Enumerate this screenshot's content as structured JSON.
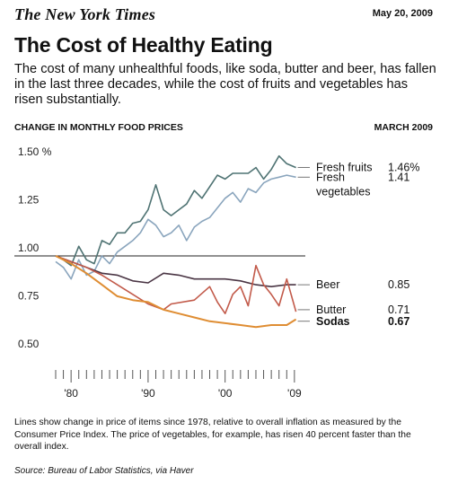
{
  "header": {
    "masthead": "The New York Times",
    "date": "May 20, 2009"
  },
  "headline": "The Cost of Healthy Eating",
  "subtitle": "The cost of many unhealthful foods, like soda, butter and beer, has fallen in the last three decades, while the cost of fruits and vegetables has risen substantially.",
  "chart_header": {
    "left": "CHANGE IN MONTHLY FOOD PRICES",
    "right": "MARCH 2009"
  },
  "footnote": "Lines show change in price of items since 1978, relative to overall inflation as measured by the Consumer Price Index. The price of vegetables, for example, has risen 40 percent faster than the overall index.",
  "source": "Source: Bureau of Labor Statistics, via Haver",
  "chart_data": {
    "type": "line",
    "x_range": [
      1978,
      2009.25
    ],
    "ylim": [
      0.5,
      1.5
    ],
    "y_ticks": [
      {
        "value": 1.5,
        "label": "1.50 %"
      },
      {
        "value": 1.25,
        "label": "1.25"
      },
      {
        "value": 1.0,
        "label": "1.00"
      },
      {
        "value": 0.75,
        "label": "0.75"
      },
      {
        "value": 0.5,
        "label": "0.50"
      }
    ],
    "x_ticks": [
      {
        "value": 1980,
        "label": "'80"
      },
      {
        "value": 1990,
        "label": "'90"
      },
      {
        "value": 2000,
        "label": "'00"
      },
      {
        "value": 2009,
        "label": "'09"
      }
    ],
    "baseline": 1.0,
    "grid": false,
    "series": [
      {
        "name": "Fresh fruits",
        "end_label": "1.46%",
        "color": "#4f7373",
        "bold": false,
        "label_y": 1.46,
        "x": [
          1978,
          1979,
          1980,
          1981,
          1982,
          1983,
          1984,
          1985,
          1986,
          1987,
          1988,
          1989,
          1990,
          1991,
          1992,
          1993,
          1994,
          1995,
          1996,
          1997,
          1998,
          1999,
          2000,
          2001,
          2002,
          2003,
          2004,
          2005,
          2006,
          2007,
          2008,
          2009.2
        ],
        "values": [
          1.0,
          0.98,
          0.95,
          1.05,
          0.98,
          0.96,
          1.08,
          1.06,
          1.12,
          1.12,
          1.17,
          1.18,
          1.24,
          1.37,
          1.24,
          1.21,
          1.24,
          1.27,
          1.34,
          1.3,
          1.36,
          1.42,
          1.4,
          1.43,
          1.43,
          1.43,
          1.46,
          1.4,
          1.45,
          1.52,
          1.48,
          1.46
        ]
      },
      {
        "name": "Fresh vegetables",
        "end_label": "1.41",
        "color": "#8aa5bd",
        "bold": false,
        "label_y": 1.41,
        "x": [
          1978,
          1979,
          1980,
          1981,
          1982,
          1983,
          1984,
          1985,
          1986,
          1987,
          1988,
          1989,
          1990,
          1991,
          1992,
          1993,
          1994,
          1995,
          1996,
          1997,
          1998,
          1999,
          2000,
          2001,
          2002,
          2003,
          2004,
          2005,
          2006,
          2007,
          2008,
          2009.2
        ],
        "values": [
          0.97,
          0.94,
          0.88,
          0.98,
          0.9,
          0.92,
          1.0,
          0.96,
          1.02,
          1.05,
          1.08,
          1.12,
          1.19,
          1.16,
          1.1,
          1.12,
          1.16,
          1.08,
          1.15,
          1.18,
          1.2,
          1.25,
          1.3,
          1.33,
          1.28,
          1.35,
          1.33,
          1.38,
          1.4,
          1.41,
          1.42,
          1.41
        ]
      },
      {
        "name": "Beer",
        "end_label": "0.85",
        "color": "#4a3544",
        "bold": false,
        "label_y": 0.85,
        "x": [
          1978,
          1980,
          1982,
          1984,
          1986,
          1988,
          1990,
          1992,
          1994,
          1996,
          1998,
          2000,
          2002,
          2004,
          2006,
          2008,
          2009.2
        ],
        "values": [
          1.0,
          0.97,
          0.94,
          0.91,
          0.9,
          0.87,
          0.86,
          0.91,
          0.9,
          0.88,
          0.88,
          0.88,
          0.87,
          0.85,
          0.84,
          0.85,
          0.85
        ]
      },
      {
        "name": "Butter",
        "end_label": "0.71",
        "color": "#c25a4a",
        "bold": false,
        "label_y": 0.72,
        "x": [
          1978,
          1980,
          1982,
          1984,
          1986,
          1988,
          1990,
          1992,
          1993,
          1996,
          1998,
          1999,
          2000,
          2001,
          2002,
          2003,
          2004,
          2005,
          2006,
          2007,
          2008,
          2009.2
        ],
        "values": [
          1.0,
          0.97,
          0.94,
          0.9,
          0.85,
          0.8,
          0.75,
          0.72,
          0.75,
          0.77,
          0.84,
          0.76,
          0.7,
          0.8,
          0.84,
          0.74,
          0.95,
          0.85,
          0.8,
          0.74,
          0.88,
          0.71
        ]
      },
      {
        "name": "Sodas",
        "end_label": "0.67",
        "color": "#df8d33",
        "bold": true,
        "label_y": 0.66,
        "x": [
          1978,
          1980,
          1982,
          1984,
          1986,
          1988,
          1990,
          1992,
          1994,
          1996,
          1998,
          2000,
          2002,
          2004,
          2006,
          2008,
          2009.2
        ],
        "values": [
          1.0,
          0.96,
          0.91,
          0.85,
          0.79,
          0.77,
          0.76,
          0.72,
          0.7,
          0.68,
          0.66,
          0.65,
          0.64,
          0.63,
          0.64,
          0.64,
          0.67
        ]
      }
    ],
    "end_value_heading": "",
    "legend_placement": "right, end-of-line labels"
  }
}
